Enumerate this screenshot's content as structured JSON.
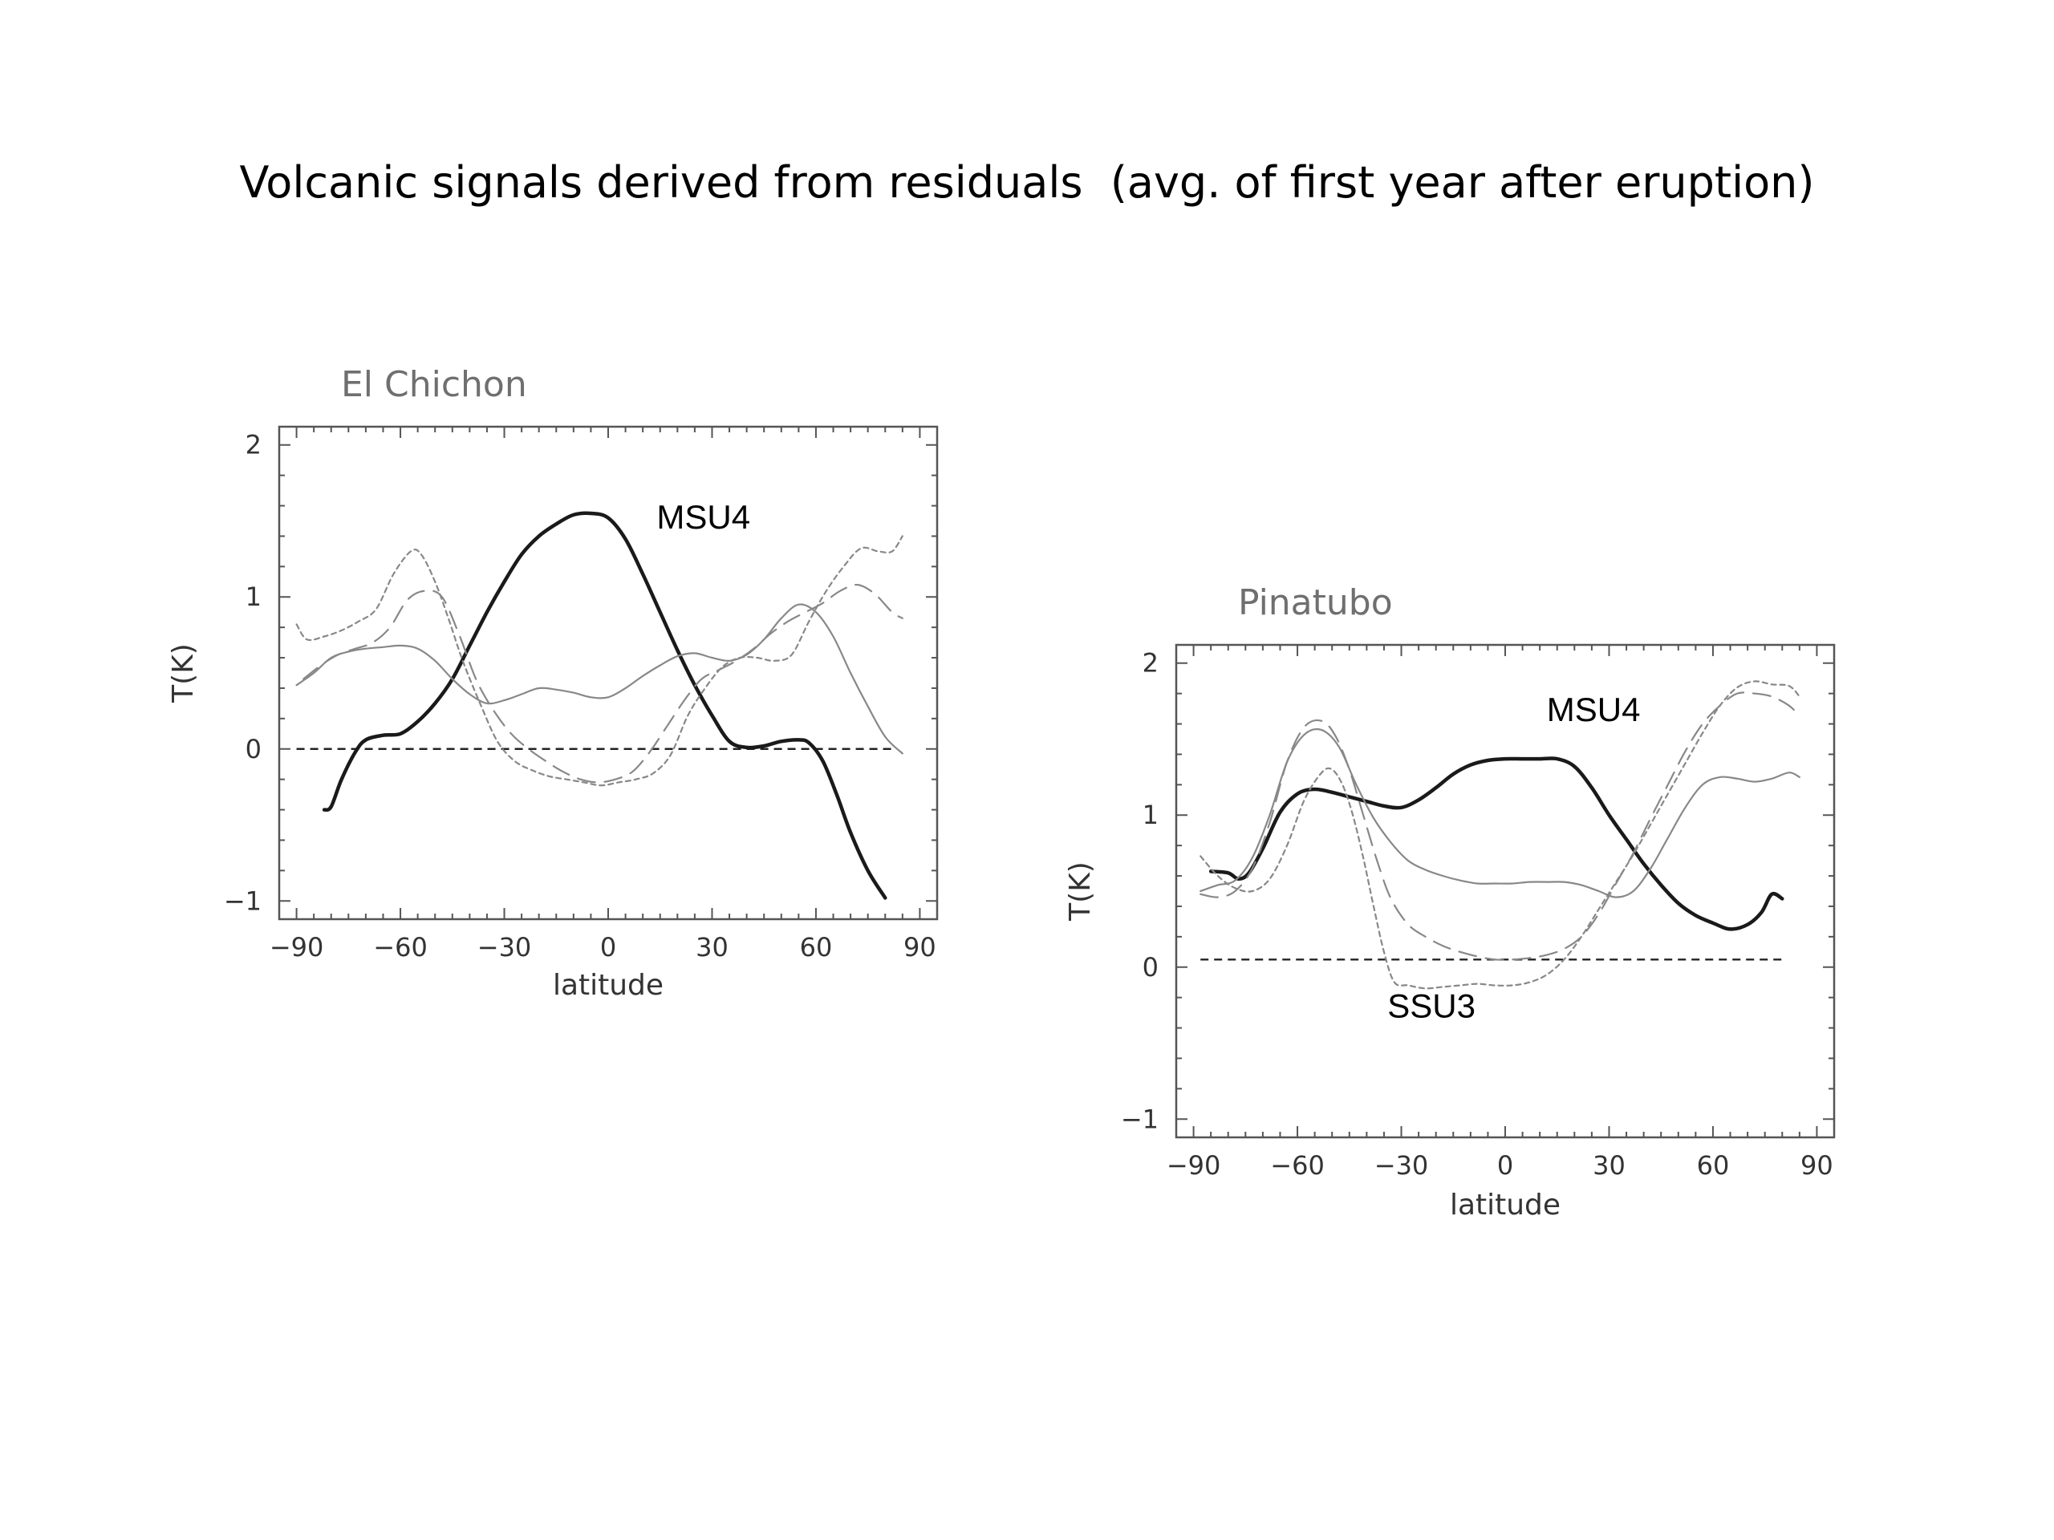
{
  "slide": {
    "title": "Volcanic signals derived from residuals  (avg. of first year after eruption)"
  },
  "chart_data": [
    {
      "type": "line",
      "title": "El Chichon",
      "xlabel": "latitude",
      "ylabel": "T(K)",
      "xlim": [
        -95,
        95
      ],
      "ylim": [
        -1.12,
        2.12
      ],
      "xticks": [
        -90,
        -60,
        -30,
        0,
        30,
        60,
        90
      ],
      "xtick_labels": [
        "−90",
        "−60",
        "−30",
        "0",
        "30",
        "60",
        "90"
      ],
      "yticks": [
        -1,
        0,
        1,
        2
      ],
      "ytick_labels": [
        "−1",
        "0",
        "1",
        "2"
      ],
      "reference_line": {
        "y": 0,
        "x": [
          -90,
          82
        ]
      },
      "annotations": [
        {
          "text": "MSU4",
          "x": 14,
          "y": 1.45
        }
      ],
      "series": [
        {
          "style": "thick",
          "color": "#1a1a1a",
          "x": [
            -82,
            -80,
            -77,
            -73,
            -70,
            -65,
            -60,
            -55,
            -50,
            -45,
            -40,
            -35,
            -30,
            -25,
            -20,
            -15,
            -10,
            -5,
            0,
            5,
            10,
            15,
            20,
            25,
            30,
            35,
            40,
            45,
            50,
            55,
            58,
            62,
            66,
            70,
            75,
            80
          ],
          "y": [
            -0.4,
            -0.38,
            -0.2,
            -0.02,
            0.06,
            0.09,
            0.1,
            0.18,
            0.3,
            0.46,
            0.68,
            0.9,
            1.1,
            1.28,
            1.4,
            1.48,
            1.54,
            1.55,
            1.52,
            1.38,
            1.15,
            0.9,
            0.65,
            0.42,
            0.22,
            0.05,
            0.01,
            0.02,
            0.05,
            0.06,
            0.04,
            -0.08,
            -0.3,
            -0.55,
            -0.8,
            -0.98
          ]
        },
        {
          "style": "thin",
          "color": "#888888",
          "x": [
            -90,
            -85,
            -80,
            -75,
            -70,
            -65,
            -60,
            -55,
            -50,
            -45,
            -40,
            -35,
            -30,
            -25,
            -20,
            -15,
            -10,
            -5,
            0,
            5,
            10,
            15,
            20,
            25,
            30,
            35,
            40,
            45,
            50,
            55,
            60,
            65,
            70,
            75,
            80,
            85
          ],
          "y": [
            0.42,
            0.5,
            0.6,
            0.64,
            0.66,
            0.67,
            0.68,
            0.66,
            0.58,
            0.46,
            0.36,
            0.3,
            0.32,
            0.36,
            0.4,
            0.39,
            0.37,
            0.34,
            0.34,
            0.4,
            0.48,
            0.55,
            0.61,
            0.63,
            0.6,
            0.58,
            0.62,
            0.72,
            0.86,
            0.95,
            0.9,
            0.74,
            0.5,
            0.28,
            0.08,
            -0.03
          ]
        },
        {
          "style": "dashed",
          "color": "#888888",
          "x": [
            -88,
            -83,
            -78,
            -73,
            -68,
            -63,
            -58,
            -53,
            -48,
            -43,
            -38,
            -33,
            -28,
            -23,
            -18,
            -13,
            -8,
            -3,
            2,
            7,
            12,
            17,
            22,
            27,
            32,
            37,
            42,
            47,
            52,
            57,
            62,
            67,
            72,
            77,
            82,
            85
          ],
          "y": [
            0.46,
            0.55,
            0.62,
            0.66,
            0.7,
            0.8,
            0.98,
            1.04,
            1.0,
            0.75,
            0.45,
            0.25,
            0.1,
            0.0,
            -0.08,
            -0.15,
            -0.2,
            -0.22,
            -0.2,
            -0.15,
            -0.02,
            0.15,
            0.32,
            0.46,
            0.52,
            0.58,
            0.66,
            0.76,
            0.84,
            0.9,
            0.96,
            1.04,
            1.08,
            1.02,
            0.9,
            0.86
          ]
        },
        {
          "style": "dotted",
          "color": "#888888",
          "x": [
            -90,
            -87,
            -82,
            -77,
            -72,
            -67,
            -62,
            -57,
            -54,
            -50,
            -46,
            -42,
            -37,
            -32,
            -27,
            -22,
            -17,
            -12,
            -7,
            -2,
            3,
            8,
            13,
            18,
            23,
            28,
            33,
            38,
            43,
            48,
            53,
            58,
            63,
            68,
            73,
            78,
            82,
            85
          ],
          "y": [
            0.82,
            0.72,
            0.74,
            0.78,
            0.84,
            0.92,
            1.15,
            1.3,
            1.28,
            1.1,
            0.85,
            0.58,
            0.3,
            0.05,
            -0.08,
            -0.14,
            -0.18,
            -0.2,
            -0.22,
            -0.24,
            -0.22,
            -0.2,
            -0.16,
            -0.04,
            0.22,
            0.4,
            0.54,
            0.6,
            0.6,
            0.58,
            0.62,
            0.84,
            1.04,
            1.2,
            1.32,
            1.3,
            1.3,
            1.4
          ]
        }
      ]
    },
    {
      "type": "line",
      "title": "Pinatubo",
      "xlabel": "latitude",
      "ylabel": "T(K)",
      "xlim": [
        -95,
        95
      ],
      "ylim": [
        -1.12,
        2.12
      ],
      "xticks": [
        -90,
        -60,
        -30,
        0,
        30,
        60,
        90
      ],
      "xtick_labels": [
        "−90",
        "−60",
        "−30",
        "0",
        "30",
        "60",
        "90"
      ],
      "yticks": [
        -1,
        0,
        1,
        2
      ],
      "ytick_labels": [
        "−1",
        "0",
        "1",
        "2"
      ],
      "reference_line": {
        "y": 0.05,
        "x": [
          -88,
          80
        ]
      },
      "annotations": [
        {
          "text": "MSU4",
          "x": 12,
          "y": 1.62
        },
        {
          "text": "SSU3",
          "x": -34,
          "y": -0.33
        }
      ],
      "series": [
        {
          "style": "thick",
          "color": "#1a1a1a",
          "x": [
            -85,
            -80,
            -77,
            -74,
            -70,
            -65,
            -60,
            -55,
            -50,
            -45,
            -40,
            -35,
            -30,
            -25,
            -20,
            -15,
            -10,
            -5,
            0,
            5,
            10,
            15,
            20,
            25,
            30,
            35,
            40,
            45,
            50,
            55,
            60,
            65,
            70,
            74,
            77,
            80
          ],
          "y": [
            0.63,
            0.62,
            0.58,
            0.62,
            0.78,
            1.02,
            1.14,
            1.17,
            1.15,
            1.12,
            1.09,
            1.06,
            1.05,
            1.1,
            1.18,
            1.27,
            1.33,
            1.36,
            1.37,
            1.37,
            1.37,
            1.37,
            1.32,
            1.18,
            1.0,
            0.84,
            0.68,
            0.54,
            0.42,
            0.34,
            0.29,
            0.25,
            0.28,
            0.36,
            0.48,
            0.45
          ]
        },
        {
          "style": "thin",
          "color": "#888888",
          "x": [
            -88,
            -83,
            -78,
            -73,
            -68,
            -63,
            -58,
            -53,
            -48,
            -43,
            -38,
            -33,
            -28,
            -23,
            -18,
            -13,
            -8,
            -3,
            2,
            7,
            12,
            17,
            22,
            27,
            32,
            37,
            42,
            47,
            52,
            57,
            62,
            67,
            72,
            77,
            82,
            85
          ],
          "y": [
            0.5,
            0.54,
            0.57,
            0.72,
            1.0,
            1.35,
            1.53,
            1.56,
            1.45,
            1.2,
            0.98,
            0.82,
            0.7,
            0.64,
            0.6,
            0.57,
            0.55,
            0.55,
            0.55,
            0.56,
            0.56,
            0.56,
            0.54,
            0.5,
            0.46,
            0.5,
            0.65,
            0.85,
            1.05,
            1.2,
            1.25,
            1.24,
            1.22,
            1.24,
            1.28,
            1.25
          ]
        },
        {
          "style": "dashed",
          "color": "#888888",
          "x": [
            -88,
            -83,
            -78,
            -73,
            -68,
            -63,
            -58,
            -53,
            -49,
            -45,
            -41,
            -37,
            -33,
            -28,
            -23,
            -18,
            -13,
            -8,
            -3,
            2,
            7,
            12,
            17,
            22,
            27,
            32,
            37,
            42,
            47,
            52,
            57,
            62,
            67,
            72,
            77,
            82,
            85
          ],
          "y": [
            0.48,
            0.46,
            0.5,
            0.65,
            0.95,
            1.35,
            1.58,
            1.62,
            1.52,
            1.3,
            1.0,
            0.7,
            0.45,
            0.28,
            0.2,
            0.14,
            0.1,
            0.07,
            0.05,
            0.05,
            0.06,
            0.08,
            0.12,
            0.2,
            0.35,
            0.55,
            0.75,
            0.98,
            1.2,
            1.42,
            1.6,
            1.72,
            1.8,
            1.8,
            1.78,
            1.72,
            1.65
          ]
        },
        {
          "style": "dotted",
          "color": "#888888",
          "x": [
            -88,
            -83,
            -78,
            -73,
            -68,
            -63,
            -58,
            -53,
            -50,
            -47,
            -44,
            -41,
            -38,
            -35,
            -32,
            -28,
            -23,
            -18,
            -13,
            -8,
            -3,
            2,
            7,
            12,
            17,
            22,
            27,
            32,
            37,
            42,
            47,
            52,
            57,
            62,
            67,
            72,
            77,
            82,
            85
          ],
          "y": [
            0.73,
            0.6,
            0.52,
            0.5,
            0.58,
            0.8,
            1.1,
            1.28,
            1.3,
            1.2,
            1.0,
            0.72,
            0.4,
            0.1,
            -0.1,
            -0.12,
            -0.14,
            -0.13,
            -0.12,
            -0.11,
            -0.12,
            -0.12,
            -0.1,
            -0.05,
            0.05,
            0.2,
            0.38,
            0.56,
            0.74,
            0.94,
            1.14,
            1.34,
            1.54,
            1.72,
            1.84,
            1.88,
            1.86,
            1.85,
            1.78
          ]
        }
      ]
    }
  ]
}
